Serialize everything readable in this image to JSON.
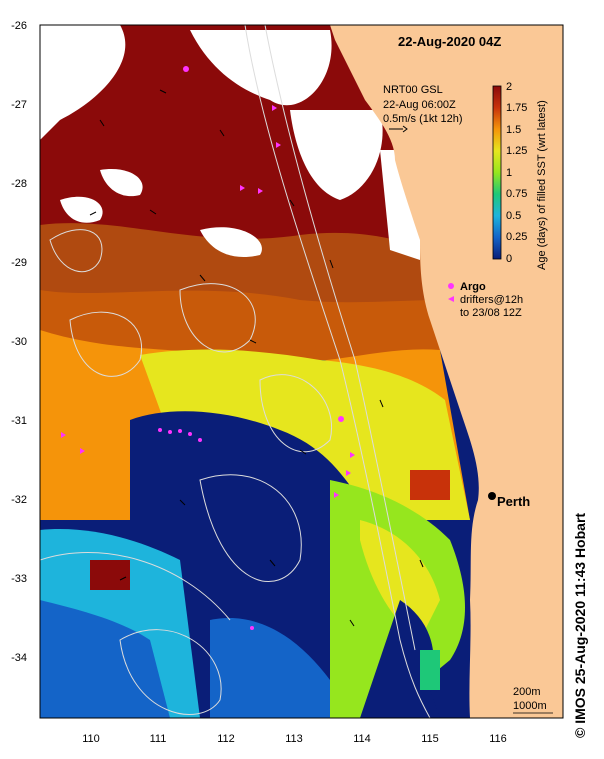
{
  "map": {
    "title": "22-Aug-2020 04Z",
    "current_info": [
      "NRT00 GSL",
      "22-Aug 06:00Z",
      "0.5m/s (1kt 12h)"
    ],
    "colorbar_label": "Age (days) of filled SST (wrt latest)",
    "colorbar_ticks": [
      "2",
      "1.75",
      "1.5",
      "1.25",
      "1",
      "0.75",
      "0.5",
      "0.25",
      "0"
    ],
    "colorbar_colors": [
      "#8b0a0a",
      "#c8320a",
      "#f5940a",
      "#e6e61e",
      "#96e61e",
      "#1ec878",
      "#1eb4dc",
      "#1464c8",
      "#0a1e78"
    ],
    "legend": {
      "argo_label": "Argo",
      "drifter_label_1": "drifters@12h",
      "drifter_label_2": "to 23/08 12Z",
      "marker_color": "#ff33ff"
    },
    "city_label": "Perth",
    "depth_labels": [
      "200m",
      "1000m"
    ],
    "lat_labels": [
      "-26",
      "-27",
      "-28",
      "-29",
      "-30",
      "-31",
      "-32",
      "-33",
      "-34"
    ],
    "lon_labels": [
      "110",
      "111",
      "112",
      "113",
      "114",
      "115",
      "116"
    ],
    "credit": "© IMOS 25-Aug-2020 11:43 Hobart",
    "colors": {
      "land": "#fac896",
      "cloud": "#ffffff",
      "contour": "#dcdcdc"
    }
  }
}
